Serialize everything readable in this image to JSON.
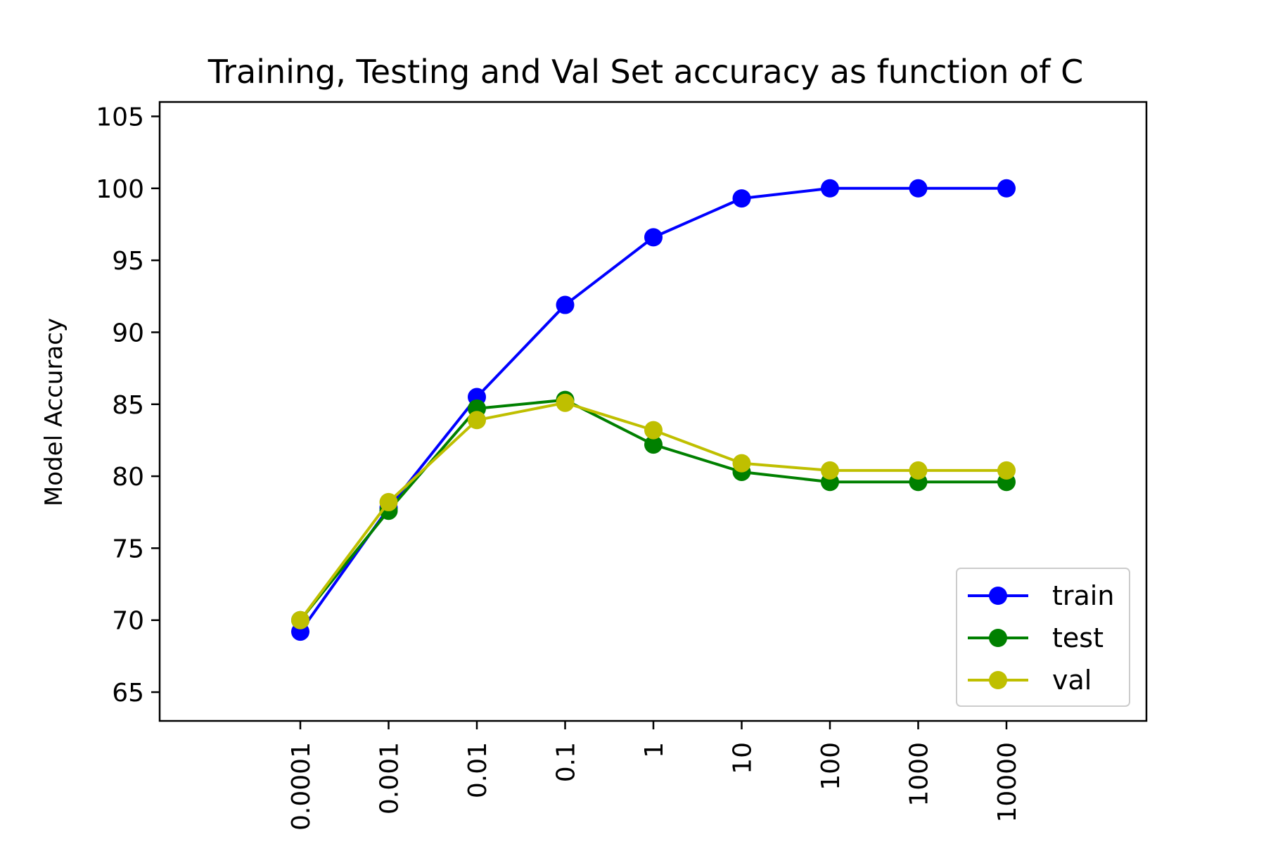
{
  "chart_data": {
    "type": "line",
    "title": "Training, Testing and Val Set accuracy as function of C",
    "xlabel": "",
    "ylabel": "Model Accuracy",
    "categories": [
      "0.0001",
      "0.001",
      "0.01",
      "0.1",
      "1",
      "10",
      "100",
      "1000",
      "10000"
    ],
    "ylim": [
      63,
      106
    ],
    "yticks": [
      65,
      70,
      75,
      80,
      85,
      90,
      95,
      100,
      105
    ],
    "grid": false,
    "legend_position": "lower right",
    "series": [
      {
        "name": "train",
        "color": "#0000ff",
        "values": [
          69.2,
          77.8,
          85.5,
          91.9,
          96.6,
          99.3,
          100.0,
          100.0,
          100.0
        ]
      },
      {
        "name": "test",
        "color": "#008000",
        "values": [
          70.0,
          77.6,
          84.7,
          85.3,
          82.2,
          80.3,
          79.6,
          79.6,
          79.6
        ]
      },
      {
        "name": "val",
        "color": "#bfbf00",
        "values": [
          70.0,
          78.2,
          83.9,
          85.1,
          83.2,
          80.9,
          80.4,
          80.4,
          80.4
        ]
      }
    ]
  }
}
